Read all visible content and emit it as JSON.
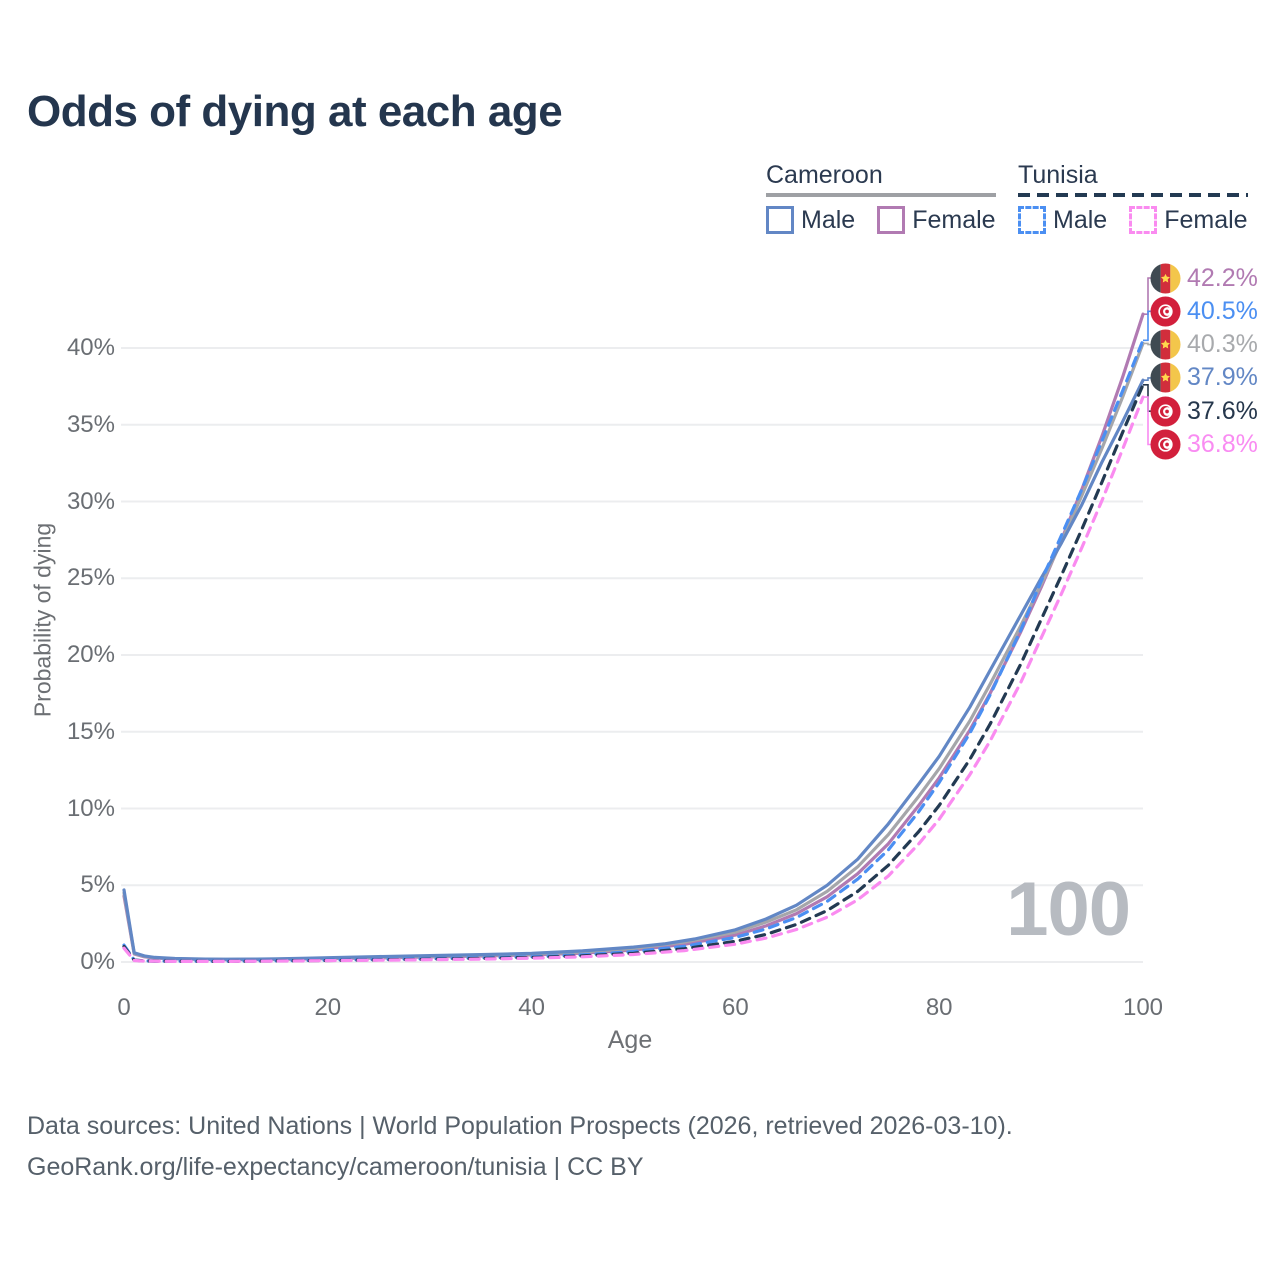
{
  "title": "Odds of dying at each age",
  "watermark": "100",
  "legend": {
    "groups": [
      {
        "label": "Cameroon",
        "line_style": "solid",
        "underline_color": "#9EA0A4",
        "items": [
          {
            "label": "Male",
            "color": "#6287C5",
            "dash": false
          },
          {
            "label": "Female",
            "color": "#B17AB2",
            "dash": false
          }
        ]
      },
      {
        "label": "Tunisia",
        "line_style": "dashed",
        "underline_color": "#233A52",
        "items": [
          {
            "label": "Male",
            "color": "#4B8FF2",
            "dash": true
          },
          {
            "label": "Female",
            "color": "#FA8BF0",
            "dash": true
          }
        ]
      }
    ]
  },
  "footer": {
    "line1": "Data sources: United Nations | World Population Prospects (2026, retrieved 2026-03-10).",
    "line2": "GeoRank.org/life-expectancy/cameroon/tunisia | CC BY"
  },
  "chart_data": {
    "type": "line",
    "title": "Odds of dying at each age",
    "xlabel": "Age",
    "ylabel": "Probability of dying",
    "xlim": [
      0,
      100
    ],
    "ylim": [
      0,
      44
    ],
    "grid": "horizontal",
    "legend_position": "top-right",
    "x_ticks": [
      0,
      20,
      40,
      60,
      80,
      100
    ],
    "y_ticks": [
      {
        "value": 0,
        "label": "0%"
      },
      {
        "value": 5,
        "label": "5%"
      },
      {
        "value": 10,
        "label": "10%"
      },
      {
        "value": 15,
        "label": "15%"
      },
      {
        "value": 20,
        "label": "20%"
      },
      {
        "value": 25,
        "label": "25%"
      },
      {
        "value": 30,
        "label": "30%"
      },
      {
        "value": 35,
        "label": "35%"
      },
      {
        "value": 40,
        "label": "40%"
      }
    ],
    "series": [
      {
        "id": "cameroon-female",
        "name": "Cameroon Female",
        "color": "#B17AB2",
        "dash": false,
        "points": [
          [
            0,
            4.3
          ],
          [
            1,
            0.52
          ],
          [
            2,
            0.34
          ],
          [
            3,
            0.26
          ],
          [
            5,
            0.2
          ],
          [
            10,
            0.15
          ],
          [
            15,
            0.17
          ],
          [
            20,
            0.22
          ],
          [
            25,
            0.27
          ],
          [
            30,
            0.33
          ],
          [
            35,
            0.39
          ],
          [
            40,
            0.46
          ],
          [
            45,
            0.58
          ],
          [
            50,
            0.78
          ],
          [
            55,
            1.15
          ],
          [
            60,
            1.75
          ],
          [
            63,
            2.35
          ],
          [
            66,
            3.15
          ],
          [
            69,
            4.25
          ],
          [
            72,
            5.75
          ],
          [
            75,
            7.7
          ],
          [
            78,
            10.2
          ],
          [
            80,
            12.0
          ],
          [
            83,
            15.1
          ],
          [
            85,
            17.5
          ],
          [
            88,
            21.5
          ],
          [
            90,
            24.4
          ],
          [
            92,
            27.5
          ],
          [
            94,
            30.8
          ],
          [
            96,
            34.3
          ],
          [
            98,
            38.1
          ],
          [
            100,
            42.2
          ]
        ]
      },
      {
        "id": "cameroon-both",
        "name": "Cameroon",
        "color": "#A5A6AA",
        "dash": false,
        "points": [
          [
            0,
            4.5
          ],
          [
            1,
            0.56
          ],
          [
            2,
            0.37
          ],
          [
            3,
            0.28
          ],
          [
            5,
            0.21
          ],
          [
            10,
            0.16
          ],
          [
            15,
            0.19
          ],
          [
            20,
            0.25
          ],
          [
            25,
            0.31
          ],
          [
            30,
            0.37
          ],
          [
            35,
            0.44
          ],
          [
            40,
            0.51
          ],
          [
            45,
            0.65
          ],
          [
            50,
            0.88
          ],
          [
            55,
            1.3
          ],
          [
            60,
            1.95
          ],
          [
            63,
            2.6
          ],
          [
            66,
            3.4
          ],
          [
            69,
            4.6
          ],
          [
            72,
            6.2
          ],
          [
            75,
            8.3
          ],
          [
            78,
            10.8
          ],
          [
            80,
            12.6
          ],
          [
            83,
            15.7
          ],
          [
            85,
            18.1
          ],
          [
            88,
            21.9
          ],
          [
            90,
            24.6
          ],
          [
            92,
            27.4
          ],
          [
            94,
            30.4
          ],
          [
            96,
            33.5
          ],
          [
            98,
            36.8
          ],
          [
            100,
            40.3
          ]
        ]
      },
      {
        "id": "cameroon-male",
        "name": "Cameroon Male",
        "color": "#6287C5",
        "dash": false,
        "points": [
          [
            0,
            4.7
          ],
          [
            1,
            0.6
          ],
          [
            2,
            0.4
          ],
          [
            3,
            0.3
          ],
          [
            5,
            0.23
          ],
          [
            8,
            0.19
          ],
          [
            10,
            0.18
          ],
          [
            13,
            0.19
          ],
          [
            15,
            0.21
          ],
          [
            18,
            0.25
          ],
          [
            20,
            0.28
          ],
          [
            25,
            0.35
          ],
          [
            30,
            0.42
          ],
          [
            35,
            0.48
          ],
          [
            40,
            0.56
          ],
          [
            45,
            0.72
          ],
          [
            50,
            0.97
          ],
          [
            53,
            1.18
          ],
          [
            56,
            1.5
          ],
          [
            60,
            2.1
          ],
          [
            63,
            2.8
          ],
          [
            66,
            3.7
          ],
          [
            69,
            5.0
          ],
          [
            72,
            6.7
          ],
          [
            75,
            9.0
          ],
          [
            78,
            11.6
          ],
          [
            80,
            13.4
          ],
          [
            83,
            16.6
          ],
          [
            85,
            19.0
          ],
          [
            88,
            22.6
          ],
          [
            90,
            25.0
          ],
          [
            92,
            27.3
          ],
          [
            94,
            29.8
          ],
          [
            96,
            32.6
          ],
          [
            98,
            35.2
          ],
          [
            100,
            37.9
          ]
        ]
      },
      {
        "id": "tunisia-male",
        "name": "Tunisia Male",
        "color": "#4B8FF2",
        "dash": true,
        "points": [
          [
            0,
            1.1
          ],
          [
            1,
            0.13
          ],
          [
            2,
            0.08
          ],
          [
            3,
            0.06
          ],
          [
            5,
            0.05
          ],
          [
            10,
            0.05
          ],
          [
            15,
            0.08
          ],
          [
            20,
            0.12
          ],
          [
            25,
            0.16
          ],
          [
            30,
            0.21
          ],
          [
            35,
            0.27
          ],
          [
            40,
            0.34
          ],
          [
            45,
            0.47
          ],
          [
            50,
            0.68
          ],
          [
            55,
            1.02
          ],
          [
            60,
            1.6
          ],
          [
            63,
            2.15
          ],
          [
            66,
            2.9
          ],
          [
            69,
            3.95
          ],
          [
            72,
            5.4
          ],
          [
            75,
            7.3
          ],
          [
            78,
            9.8
          ],
          [
            80,
            11.7
          ],
          [
            83,
            14.9
          ],
          [
            85,
            17.4
          ],
          [
            88,
            21.6
          ],
          [
            90,
            24.8
          ],
          [
            92,
            27.8
          ],
          [
            94,
            30.8
          ],
          [
            96,
            34.0
          ],
          [
            98,
            37.2
          ],
          [
            100,
            40.5
          ]
        ]
      },
      {
        "id": "tunisia-both",
        "name": "Tunisia",
        "color": "#233A52",
        "dash": true,
        "points": [
          [
            0,
            1.0
          ],
          [
            1,
            0.12
          ],
          [
            2,
            0.07
          ],
          [
            3,
            0.06
          ],
          [
            5,
            0.05
          ],
          [
            10,
            0.04
          ],
          [
            15,
            0.07
          ],
          [
            20,
            0.1
          ],
          [
            25,
            0.14
          ],
          [
            30,
            0.18
          ],
          [
            35,
            0.23
          ],
          [
            40,
            0.29
          ],
          [
            45,
            0.4
          ],
          [
            50,
            0.57
          ],
          [
            55,
            0.86
          ],
          [
            60,
            1.35
          ],
          [
            63,
            1.8
          ],
          [
            66,
            2.45
          ],
          [
            69,
            3.35
          ],
          [
            72,
            4.6
          ],
          [
            75,
            6.3
          ],
          [
            78,
            8.5
          ],
          [
            80,
            10.2
          ],
          [
            83,
            13.2
          ],
          [
            85,
            15.5
          ],
          [
            88,
            19.4
          ],
          [
            90,
            22.3
          ],
          [
            92,
            25.2
          ],
          [
            94,
            28.2
          ],
          [
            96,
            31.3
          ],
          [
            98,
            34.5
          ],
          [
            100,
            37.6
          ]
        ]
      },
      {
        "id": "tunisia-female",
        "name": "Tunisia Female",
        "color": "#FA8BF0",
        "dash": true,
        "points": [
          [
            0,
            0.9
          ],
          [
            1,
            0.1
          ],
          [
            2,
            0.06
          ],
          [
            3,
            0.05
          ],
          [
            5,
            0.04
          ],
          [
            10,
            0.04
          ],
          [
            15,
            0.06
          ],
          [
            20,
            0.09
          ],
          [
            25,
            0.12
          ],
          [
            30,
            0.15
          ],
          [
            35,
            0.19
          ],
          [
            40,
            0.25
          ],
          [
            45,
            0.34
          ],
          [
            50,
            0.49
          ],
          [
            55,
            0.74
          ],
          [
            60,
            1.16
          ],
          [
            63,
            1.56
          ],
          [
            66,
            2.12
          ],
          [
            69,
            2.92
          ],
          [
            72,
            4.05
          ],
          [
            75,
            5.6
          ],
          [
            78,
            7.7
          ],
          [
            80,
            9.3
          ],
          [
            83,
            12.2
          ],
          [
            85,
            14.4
          ],
          [
            88,
            18.2
          ],
          [
            90,
            21.1
          ],
          [
            92,
            24.0
          ],
          [
            94,
            27.0
          ],
          [
            96,
            30.1
          ],
          [
            98,
            33.4
          ],
          [
            100,
            36.8
          ]
        ]
      }
    ],
    "end_labels": [
      {
        "series": "cameroon-female",
        "country": "cameroon",
        "value": "42.2%",
        "end": 42.2,
        "color": "#B17AB2"
      },
      {
        "series": "tunisia-male",
        "country": "tunisia",
        "value": "40.5%",
        "end": 40.5,
        "color": "#4B8FF2"
      },
      {
        "series": "cameroon-both",
        "country": "cameroon",
        "value": "40.3%",
        "end": 40.3,
        "color": "#A8AAAD"
      },
      {
        "series": "cameroon-male",
        "country": "cameroon",
        "value": "37.9%",
        "end": 37.9,
        "color": "#6287C5"
      },
      {
        "series": "tunisia-both",
        "country": "tunisia",
        "value": "37.6%",
        "end": 37.6,
        "color": "#26374C"
      },
      {
        "series": "tunisia-female",
        "country": "tunisia",
        "value": "36.8%",
        "end": 36.8,
        "color": "#F98CF2"
      }
    ]
  }
}
